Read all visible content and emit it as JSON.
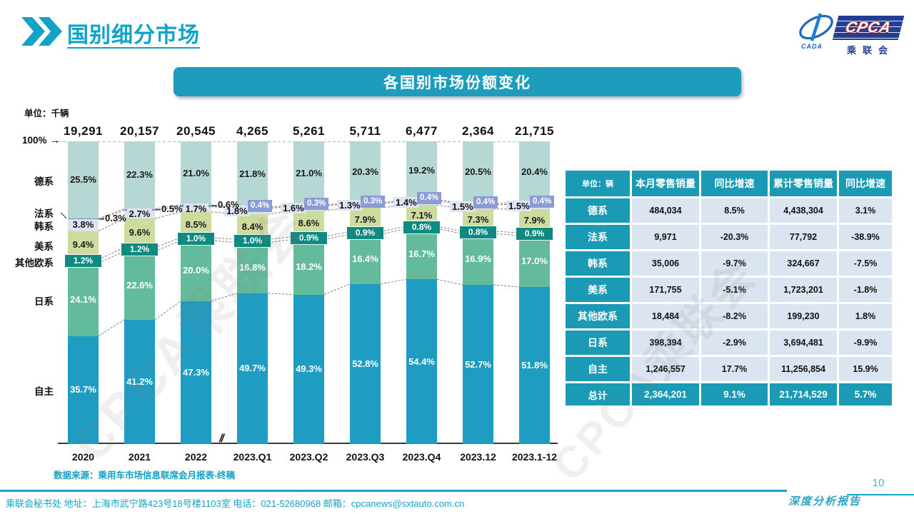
{
  "page": {
    "title": "国别细分市场",
    "banner_title": "各国别市场份额变化",
    "source_note": "数据来源：乘用车市场信息联席会月报表-终稿",
    "footer_text": "乘联会秘书处  地址：上海市武宁路423号18号楼1103室 电话：021-52680968  邮箱：cpcanews@sxtauto.com.cn",
    "report_label": "深度分析报告",
    "page_number": "10",
    "watermark": "CPCA乘联会",
    "axis_100_label": "100%",
    "axis_100_arrow": "→"
  },
  "logo": {
    "cpca": "CPCA",
    "cada": "CADA",
    "cn_name": "乘联会"
  },
  "chart_data": {
    "type": "bar",
    "stacked": true,
    "title": "各国别市场份额变化",
    "unit_label": "单位：千辆",
    "ylim": [
      0,
      100
    ],
    "axis_break_symbol": "//",
    "categories": [
      "2020",
      "2021",
      "2022",
      "2023.Q1",
      "2023.Q2",
      "2023.Q3",
      "2023.Q4",
      "2023.12",
      "2023.1-12"
    ],
    "totals": [
      "19,291",
      "20,157",
      "20,545",
      "4,265",
      "5,261",
      "5,711",
      "6,477",
      "2,364",
      "21,715"
    ],
    "series": [
      {
        "name": "德系",
        "color": "#b5d8d4",
        "values": [
          25.5,
          22.3,
          21.0,
          21.8,
          21.0,
          20.3,
          19.2,
          20.5,
          20.4
        ]
      },
      {
        "name": "法系",
        "color": "#7e90c8",
        "values": [
          0.3,
          0.5,
          0.6,
          0.4,
          0.3,
          0.3,
          0.4,
          0.4,
          0.4
        ]
      },
      {
        "name": "韩系",
        "color": "#dee3f2",
        "values": [
          3.8,
          2.7,
          1.7,
          1.8,
          1.6,
          1.3,
          1.4,
          1.5,
          1.5
        ]
      },
      {
        "name": "美系",
        "color": "#cbdc9d",
        "values": [
          9.4,
          9.6,
          8.5,
          8.4,
          8.6,
          7.9,
          7.1,
          7.3,
          7.9
        ]
      },
      {
        "name": "其他欧系",
        "color": "#0e8a82",
        "values": [
          1.2,
          1.2,
          1.0,
          1.0,
          0.9,
          0.9,
          0.8,
          0.8,
          0.9
        ]
      },
      {
        "name": "日系",
        "color": "#63bb9b",
        "values": [
          24.1,
          22.6,
          20.0,
          16.8,
          18.2,
          16.4,
          16.7,
          16.9,
          17.0
        ]
      },
      {
        "name": "自主",
        "color": "#1f9cc2",
        "values": [
          35.7,
          41.2,
          47.3,
          49.7,
          49.3,
          52.8,
          54.4,
          52.7,
          51.8
        ]
      }
    ],
    "legend_position": "left-axis",
    "grid": false
  },
  "table": {
    "header": [
      "单位：辆",
      "本月零售销量",
      "同比增速",
      "累计零售销量",
      "同比增速"
    ],
    "rows": [
      [
        "德系",
        "484,034",
        "8.5%",
        "4,438,304",
        "3.1%"
      ],
      [
        "法系",
        "9,971",
        "-20.3%",
        "77,792",
        "-38.9%"
      ],
      [
        "韩系",
        "35,006",
        "-9.7%",
        "324,667",
        "-7.5%"
      ],
      [
        "美系",
        "171,755",
        "-5.1%",
        "1,723,201",
        "-1.8%"
      ],
      [
        "其他欧系",
        "18,484",
        "-8.2%",
        "199,230",
        "1.8%"
      ],
      [
        "日系",
        "398,394",
        "-2.9%",
        "3,694,481",
        "-9.9%"
      ],
      [
        "自主",
        "1,246,557",
        "17.7%",
        "11,256,854",
        "15.9%"
      ]
    ],
    "total_row": [
      "总计",
      "2,364,201",
      "9.1%",
      "21,714,529",
      "5.7%"
    ]
  }
}
